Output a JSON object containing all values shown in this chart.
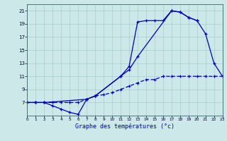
{
  "xlabel": "Graphe des températures (°c)",
  "background_color": "#cce8e8",
  "grid_color": "#aacccc",
  "line_color": "#0000bb",
  "s1_x": [
    0,
    1,
    2,
    3,
    4,
    5,
    6,
    7,
    8,
    11,
    12,
    13,
    14,
    15,
    16,
    17,
    18,
    19,
    20,
    21,
    22,
    23
  ],
  "s1_y": [
    7,
    7,
    7,
    6.5,
    6,
    5.5,
    5.2,
    7.5,
    8,
    11,
    12.5,
    19.3,
    19.5,
    19.5,
    19.5,
    21,
    20.8,
    20,
    19.5,
    17.5,
    13,
    11
  ],
  "s2_x": [
    0,
    1,
    2,
    7,
    8,
    11,
    12,
    13,
    17,
    18,
    19,
    20
  ],
  "s2_y": [
    7,
    7,
    7,
    7.5,
    8,
    11,
    12,
    14,
    21,
    20.8,
    20,
    19.5
  ],
  "s3_x": [
    0,
    1,
    2,
    3,
    4,
    5,
    6,
    7,
    8,
    9,
    10,
    11,
    12,
    13,
    14,
    15,
    16,
    17,
    18,
    19,
    20,
    21,
    22,
    23
  ],
  "s3_y": [
    7,
    7,
    7,
    7,
    7,
    7,
    7,
    7.5,
    8,
    8.2,
    8.5,
    9,
    9.5,
    10,
    10.5,
    10.5,
    11,
    11,
    11,
    11,
    11,
    11,
    11,
    11
  ],
  "ylim": [
    5,
    22
  ],
  "xlim": [
    0,
    23
  ],
  "yticks": [
    7,
    9,
    11,
    13,
    15,
    17,
    19,
    21
  ],
  "xticks": [
    0,
    1,
    2,
    3,
    4,
    5,
    6,
    7,
    8,
    9,
    10,
    11,
    12,
    13,
    14,
    15,
    16,
    17,
    18,
    19,
    20,
    21,
    22,
    23
  ],
  "xlabel_fontsize": 6.0,
  "tick_fontsize_x": 4.2,
  "tick_fontsize_y": 5.0,
  "linewidth": 0.9,
  "markersize": 3.0
}
